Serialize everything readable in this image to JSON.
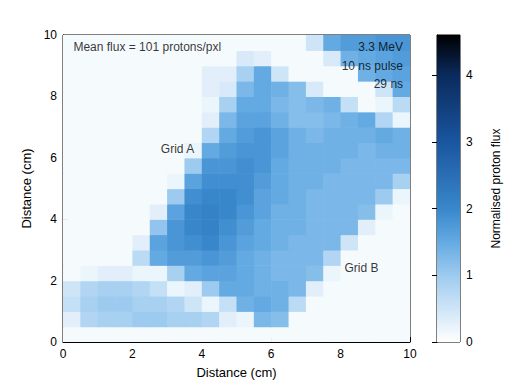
{
  "chart_data": {
    "type": "heatmap",
    "x_label": "Distance (cm)",
    "y_label": "Distance (cm)",
    "xlim": [
      0,
      10
    ],
    "ylim": [
      0,
      10
    ],
    "xticks": [
      0,
      2,
      4,
      6,
      8,
      10
    ],
    "yticks": [
      0,
      2,
      4,
      6,
      8,
      10
    ],
    "x": [
      0.25,
      0.75,
      1.25,
      1.75,
      2.25,
      2.75,
      3.25,
      3.75,
      4.25,
      4.75,
      5.25,
      5.75,
      6.25,
      6.75,
      7.25,
      7.75,
      8.25,
      8.75,
      9.25,
      9.75
    ],
    "y": [
      0.25,
      0.75,
      1.25,
      1.75,
      2.25,
      2.75,
      3.25,
      3.75,
      4.25,
      4.75,
      5.25,
      5.75,
      6.25,
      6.75,
      7.25,
      7.75,
      8.25,
      8.75,
      9.25,
      9.75
    ],
    "values": [
      [
        0.1,
        0.1,
        0.1,
        0.1,
        0.1,
        0.1,
        0.1,
        0.1,
        0.1,
        0.1,
        0.1,
        0.1,
        0.1,
        0.1,
        0.1,
        0.1,
        0.1,
        0.1,
        0.1,
        0.1
      ],
      [
        0.3,
        0.8,
        0.9,
        0.9,
        1.0,
        1.0,
        0.9,
        0.9,
        0.8,
        0.3,
        0.2,
        1.3,
        1.2,
        0.1,
        0.1,
        0.1,
        0.1,
        0.1,
        0.1,
        0.1
      ],
      [
        0.6,
        0.9,
        1.0,
        1.0,
        0.9,
        0.9,
        0.8,
        0.5,
        0.2,
        0.6,
        1.4,
        1.5,
        1.4,
        0.7,
        0.1,
        0.1,
        0.1,
        0.1,
        0.1,
        0.1
      ],
      [
        0.5,
        0.8,
        0.9,
        0.9,
        0.8,
        0.6,
        0.2,
        0.3,
        1.0,
        1.5,
        1.5,
        1.4,
        1.4,
        1.3,
        0.3,
        0.1,
        0.1,
        0.1,
        0.1,
        0.1
      ],
      [
        0.1,
        0.2,
        0.3,
        0.3,
        0.2,
        0.2,
        0.9,
        1.5,
        1.6,
        1.6,
        1.5,
        1.4,
        1.3,
        1.3,
        1.2,
        0.2,
        0.1,
        0.1,
        0.1,
        0.1
      ],
      [
        0.1,
        0.1,
        0.1,
        0.1,
        0.7,
        1.5,
        1.7,
        1.7,
        1.8,
        1.7,
        1.5,
        1.4,
        1.3,
        1.3,
        1.3,
        0.8,
        0.1,
        0.1,
        0.1,
        0.1
      ],
      [
        0.1,
        0.1,
        0.1,
        0.1,
        0.3,
        1.6,
        1.8,
        1.9,
        2.0,
        1.8,
        1.6,
        1.5,
        1.4,
        1.3,
        1.3,
        1.3,
        0.5,
        0.1,
        0.1,
        0.1
      ],
      [
        0.1,
        0.1,
        0.1,
        0.1,
        0.1,
        1.1,
        1.8,
        2.0,
        2.1,
        1.9,
        1.7,
        1.5,
        1.4,
        1.4,
        1.3,
        1.3,
        1.3,
        0.3,
        0.1,
        0.1
      ],
      [
        0.1,
        0.1,
        0.1,
        0.1,
        0.1,
        0.3,
        1.6,
        2.0,
        2.1,
        2.0,
        1.8,
        1.6,
        1.4,
        1.4,
        1.3,
        1.3,
        1.3,
        1.2,
        0.2,
        0.1
      ],
      [
        0.1,
        0.1,
        0.1,
        0.1,
        0.1,
        0.1,
        1.0,
        1.9,
        2.0,
        2.0,
        1.9,
        1.6,
        1.5,
        1.4,
        1.3,
        1.3,
        1.3,
        1.3,
        1.0,
        0.2
      ],
      [
        0.1,
        0.1,
        0.1,
        0.1,
        0.1,
        0.1,
        0.2,
        1.6,
        1.9,
        1.9,
        1.9,
        1.7,
        1.5,
        1.4,
        1.4,
        1.3,
        1.3,
        1.3,
        1.3,
        0.9
      ],
      [
        0.1,
        0.1,
        0.1,
        0.1,
        0.1,
        0.1,
        0.1,
        1.0,
        1.8,
        1.8,
        1.9,
        1.8,
        1.5,
        1.4,
        1.4,
        1.4,
        1.3,
        1.3,
        1.3,
        1.3
      ],
      [
        0.1,
        0.1,
        0.1,
        0.1,
        0.1,
        0.1,
        0.1,
        0.2,
        1.5,
        1.7,
        1.8,
        1.8,
        1.6,
        1.4,
        1.4,
        1.4,
        1.4,
        1.3,
        1.4,
        1.4
      ],
      [
        0.1,
        0.1,
        0.1,
        0.1,
        0.1,
        0.1,
        0.1,
        0.1,
        0.8,
        1.5,
        1.7,
        1.8,
        1.6,
        1.4,
        1.3,
        1.4,
        1.4,
        1.4,
        1.5,
        1.4
      ],
      [
        0.1,
        0.1,
        0.1,
        0.1,
        0.1,
        0.1,
        0.1,
        0.1,
        0.3,
        1.3,
        1.6,
        1.6,
        1.4,
        1.2,
        1.2,
        1.3,
        1.4,
        1.5,
        0.8,
        0.2
      ],
      [
        0.1,
        0.1,
        0.1,
        0.1,
        0.1,
        0.1,
        0.1,
        0.1,
        0.2,
        0.9,
        1.5,
        1.5,
        1.3,
        1.2,
        1.3,
        1.4,
        0.6,
        0.1,
        0.2,
        0.7
      ],
      [
        0.1,
        0.1,
        0.1,
        0.1,
        0.1,
        0.1,
        0.1,
        0.1,
        0.3,
        0.4,
        1.3,
        1.5,
        1.4,
        1.2,
        0.4,
        0.1,
        0.1,
        0.1,
        0.5,
        1.5
      ],
      [
        0.1,
        0.1,
        0.1,
        0.1,
        0.1,
        0.1,
        0.1,
        0.1,
        0.3,
        0.3,
        0.9,
        1.5,
        0.5,
        0.1,
        0.1,
        0.1,
        0.1,
        1.4,
        1.5,
        1.6
      ],
      [
        0.1,
        0.1,
        0.1,
        0.1,
        0.1,
        0.1,
        0.1,
        0.1,
        0.1,
        0.1,
        0.4,
        0.3,
        0.1,
        0.1,
        0.1,
        0.4,
        1.4,
        1.5,
        1.6,
        1.7
      ],
      [
        0.1,
        0.1,
        0.1,
        0.1,
        0.1,
        0.1,
        0.1,
        0.1,
        0.1,
        0.1,
        0.1,
        0.1,
        0.1,
        0.1,
        0.5,
        1.5,
        1.7,
        1.7,
        1.8,
        1.8
      ]
    ],
    "colorbar_label": "Normalised proton flux",
    "colorbar_lim": [
      0,
      4.6
    ],
    "colorbar_ticks": [
      0,
      1,
      2,
      3,
      4
    ],
    "annotations": [
      {
        "text": "Mean flux = 101 protons/pxl",
        "x": 0.3,
        "y": 9.6
      },
      {
        "text": "3.3 MeV",
        "x": 9.8,
        "y": 9.6
      },
      {
        "text": "10 ns pulse",
        "x": 9.8,
        "y": 9.0
      },
      {
        "text": "29 ns",
        "x": 9.8,
        "y": 8.4
      },
      {
        "text": "Grid A",
        "x": 3.3,
        "y": 6.3
      },
      {
        "text": "Grid B",
        "x": 8.6,
        "y": 2.4
      }
    ]
  }
}
